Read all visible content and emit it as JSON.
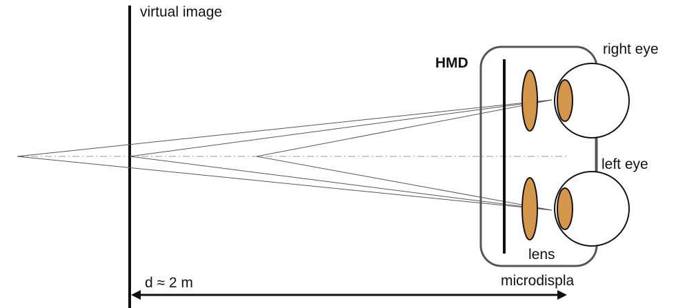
{
  "labels": {
    "virtual_image": "virtual image",
    "hmd": "HMD",
    "right_eye": "right eye",
    "left_eye": "left eye",
    "lens": "lens",
    "microdisplay": "microdispla",
    "distance": "d ≈ 2 m"
  },
  "colors": {
    "lens_fill": "#D4964A",
    "line": "#111111",
    "housing": "#555555",
    "ray": "#555555",
    "axis": "#999999"
  }
}
